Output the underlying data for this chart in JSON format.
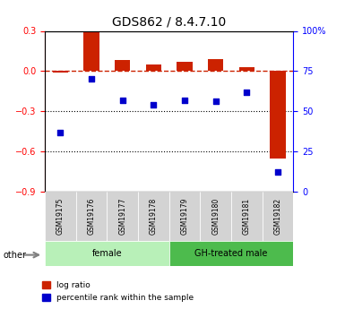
{
  "title": "GDS862 / 8.4.7.10",
  "samples": [
    "GSM19175",
    "GSM19176",
    "GSM19177",
    "GSM19178",
    "GSM19179",
    "GSM19180",
    "GSM19181",
    "GSM19182"
  ],
  "log_ratio": [
    -0.01,
    0.29,
    0.08,
    0.05,
    0.07,
    0.09,
    0.03,
    -0.65
  ],
  "percentile_rank": [
    37,
    70,
    57,
    54,
    57,
    56,
    62,
    12
  ],
  "groups": [
    {
      "label": "female",
      "start": 0,
      "end": 3,
      "color": "#90ee90"
    },
    {
      "label": "GH-treated male",
      "start": 4,
      "end": 7,
      "color": "#3cb371"
    }
  ],
  "bar_color": "#cc2200",
  "dot_color": "#0000cc",
  "ylim_left": [
    -0.9,
    0.3
  ],
  "ylim_right": [
    0,
    100
  ],
  "yticks_left": [
    -0.9,
    -0.6,
    -0.3,
    0,
    0.3
  ],
  "yticks_right": [
    0,
    25,
    50,
    75,
    100
  ],
  "hline_y": 0,
  "dotted_lines": [
    -0.3,
    -0.6
  ],
  "group_label_color_light": "#b8f0b8",
  "group_label_color_dark": "#4dbb4d",
  "sample_box_color": "#d3d3d3",
  "legend_items": [
    "log ratio",
    "percentile rank within the sample"
  ]
}
